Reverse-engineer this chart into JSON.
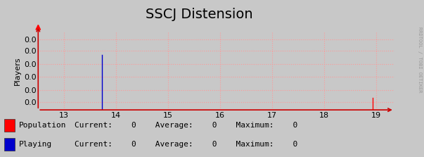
{
  "title": "SSCJ Distension",
  "ylabel": "Players",
  "bg_color": "#c8c8c8",
  "plot_bg_color": "#c8c8c8",
  "grid_color": "#ff9999",
  "xmin": 12.5,
  "xmax": 19.35,
  "ymin": 0.0,
  "ymax": 1.0,
  "ytick_labels": [
    "0.0",
    "0.0",
    "0.0",
    "0.0",
    "0.0",
    "0.0"
  ],
  "ytick_positions": [
    0.1,
    0.25,
    0.42,
    0.58,
    0.75,
    0.9
  ],
  "xticks": [
    13,
    14,
    15,
    16,
    17,
    18,
    19
  ],
  "red_line_x": 18.93,
  "blue_line_x": 13.73,
  "red_color": "#ff0000",
  "blue_color": "#0000cc",
  "axis_arrow_color": "#cc0000",
  "watermark": "RRDTOOL / TOBI OETIKER",
  "legend": [
    {
      "label": "Population",
      "color": "#ff0000"
    },
    {
      "label": "Playing",
      "color": "#0000cc"
    }
  ],
  "legend_stats": [
    "Current:    0    Average:    0    Maximum:    0",
    "Current:    0    Average:    0    Maximum:    0"
  ],
  "title_fontsize": 14,
  "axis_fontsize": 8,
  "legend_fontsize": 8
}
